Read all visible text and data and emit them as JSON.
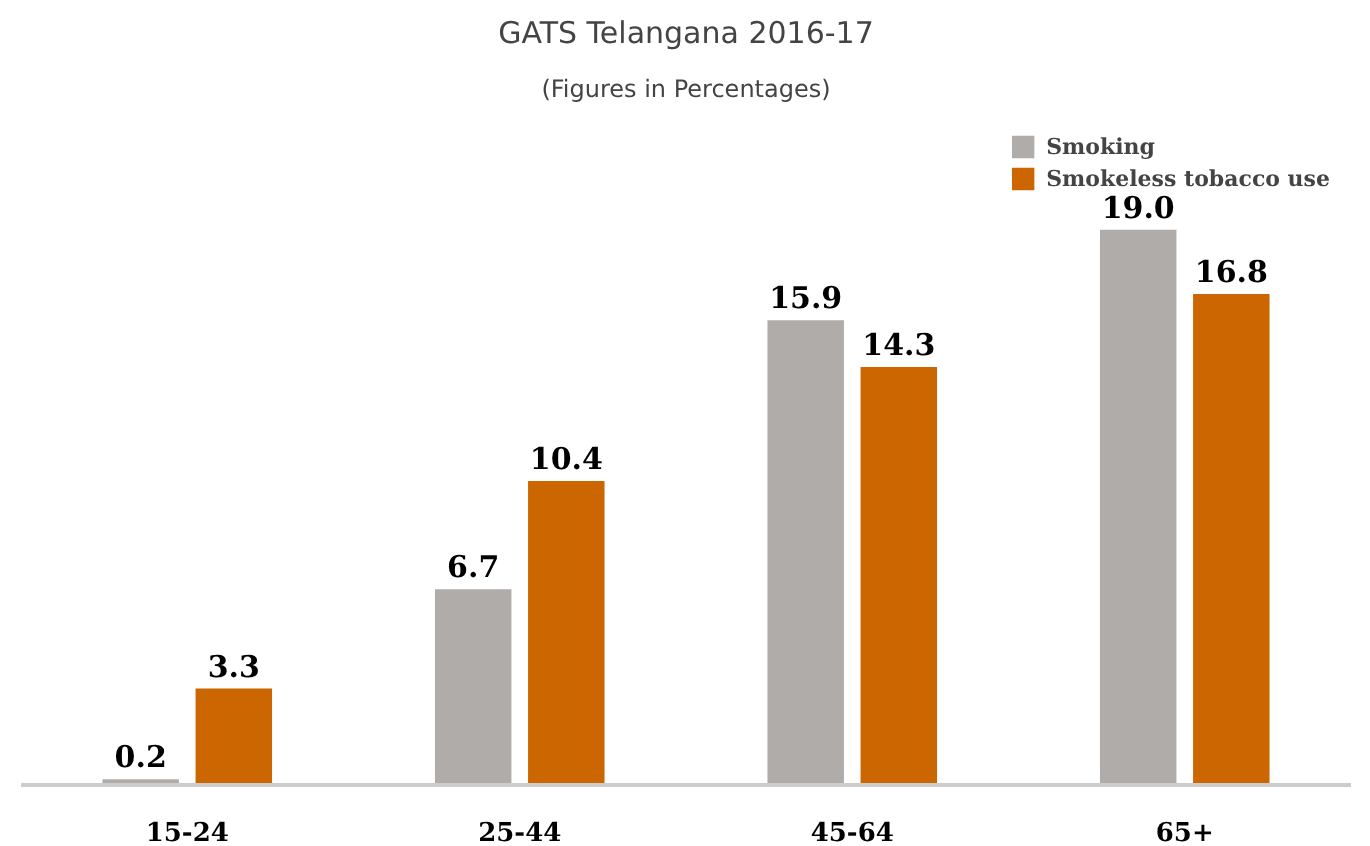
{
  "chart_data": {
    "type": "bar",
    "title": "GATS Telangana 2016-17",
    "subtitle": "(Figures in Percentages)",
    "categories": [
      "15-24",
      "25-44",
      "45-64",
      "65+"
    ],
    "series": [
      {
        "name": "Smoking",
        "color": "#b0acaa",
        "values": [
          0.2,
          6.7,
          15.9,
          19.0
        ],
        "value_labels": [
          "0.2",
          "6.7",
          "15.9",
          "19.0"
        ]
      },
      {
        "name": "Smokeless tobacco use",
        "color": "#cc6600",
        "values": [
          3.3,
          10.4,
          14.3,
          16.8
        ],
        "value_labels": [
          "3.3",
          "10.4",
          "14.3",
          "16.8"
        ]
      }
    ],
    "tick_labels": "x",
    "grid": false,
    "legend": "top right"
  }
}
